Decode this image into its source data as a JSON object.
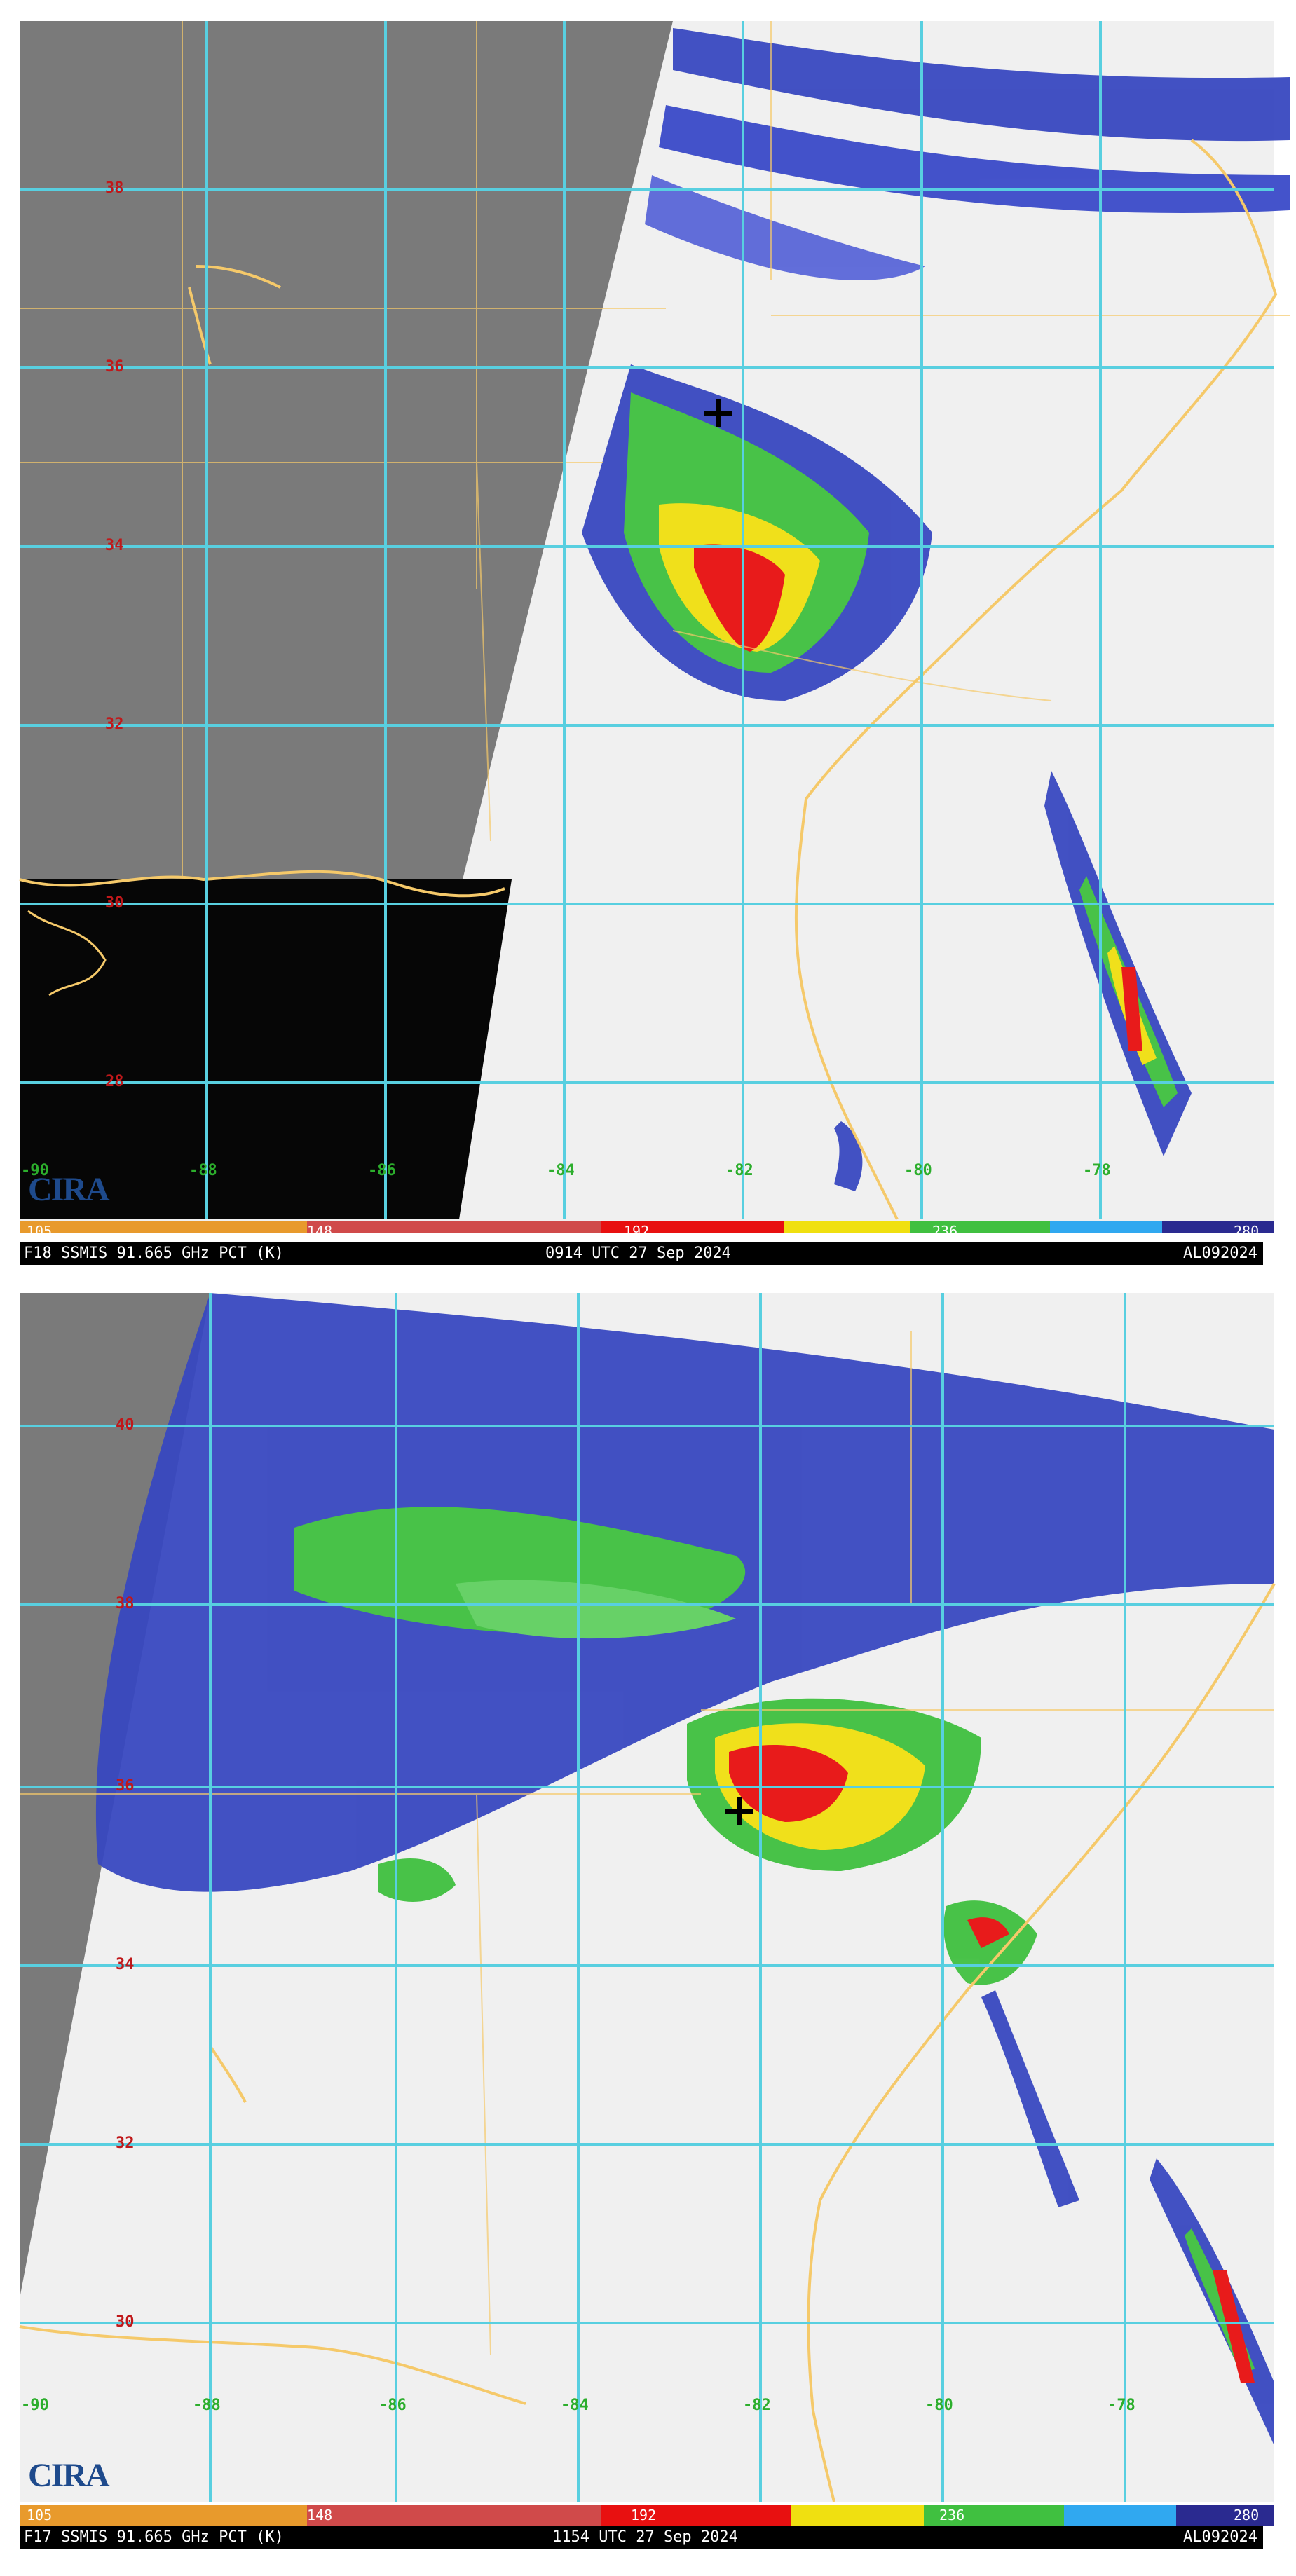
{
  "panels": [
    {
      "id": "top",
      "status": {
        "left": "F18 SSMIS 91.665 GHz PCT (K)",
        "center": "0914 UTC 27 Sep 2024",
        "right": "AL092024"
      },
      "scale_labels": [
        "105",
        "148",
        "192",
        "236",
        "280"
      ],
      "lat_labels": [
        "38",
        "36",
        "34",
        "32",
        "30",
        "28"
      ],
      "lon_labels": [
        "-90",
        "-88",
        "-86",
        "-84",
        "-82",
        "-80",
        "-78"
      ],
      "logo": "CIRA"
    },
    {
      "id": "bottom",
      "status": {
        "left": "F17 SSMIS 91.665 GHz PCT (K)",
        "center": "1154 UTC 27 Sep 2024",
        "right": "AL092024"
      },
      "scale_labels": [
        "105",
        "148",
        "192",
        "236",
        "280"
      ],
      "lat_labels": [
        "40",
        "38",
        "36",
        "34",
        "32",
        "30"
      ],
      "lon_labels": [
        "-90",
        "-88",
        "-86",
        "-84",
        "-82",
        "-80",
        "-78"
      ],
      "logo": "CIRA"
    }
  ],
  "colors": {
    "grid": "#58cfe0",
    "coast": "#f5c96a",
    "no_data_land": "#7a7a7a",
    "no_data_sea": "#000000",
    "background": "#f0f0f0",
    "scale": [
      "#e89a2c",
      "#d04a4a",
      "#e81010",
      "#f0e010",
      "#40c040",
      "#30a8f0",
      "#3848c0",
      "#2a2a90"
    ]
  }
}
